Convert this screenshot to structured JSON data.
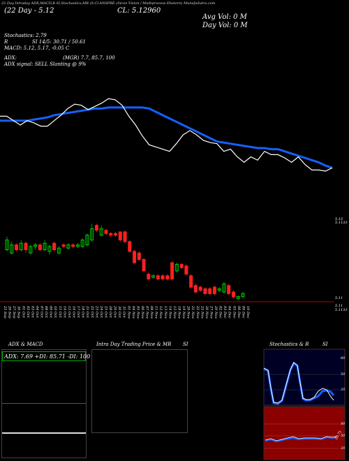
{
  "header": {
    "top_strip": "22 Day  Intraday ADX,MACD,B     SI,Stochastics,MR          (S.Cl.ANSPRE       (Incon Vision / Multiprocess Ebotorn) MunafaSutra.com",
    "line1_left": "(22 Day - 5.12",
    "line1_mid": "CL: 5.12960",
    "line2_right": "Avg Vol: 0   M",
    "line3_right": "Day Vol: 0   M"
  },
  "indicators": {
    "stoch": "Stochastics: 2.79",
    "r": "R",
    "si": "SI 14/5: 30.71 / 50.61",
    "macd": "MACD: 5.12, 5.17, -0.05 C",
    "adx": "ADX:",
    "adx_vals": "(MGR) 7.7,  85.7,  100",
    "adx_signal": "ADX  signal: SELL  Slanting @ 9%"
  },
  "price_labels": {
    "upper_top": "5.15",
    "upper_bottom": "5.1133",
    "lower_top": "5.11",
    "lower_mid": "5.11",
    "lower_bottom": "5.1133"
  },
  "dates": [
    "25 Sep",
    "26 Sep",
    "27 Sep",
    "30 Sep",
    "01 Oct",
    "02 Oct",
    "03 Oct",
    "04 Oct",
    "07 Oct",
    "08 Oct",
    "09 Oct",
    "10 Oct",
    "11 Oct",
    "14 Oct",
    "15 Oct",
    "16 Oct",
    "17 Oct",
    "18 Oct",
    "21 Oct",
    "22 Oct",
    "23 Oct",
    "24 Oct",
    "25 Oct",
    "28 Oct",
    "29 Oct",
    "30 Oct",
    "31 Oct",
    "01 Nov",
    "04 Nov",
    "05 Nov",
    "06 Nov",
    "07 Nov",
    "08 Nov",
    "11 Nov",
    "12 Nov",
    "13 Nov",
    "14 Nov",
    "15 Nov",
    "18 Nov",
    "19 Nov",
    "20 Nov",
    "21 Nov",
    "22 Nov",
    "25 Nov",
    "26 Nov",
    "27 Nov",
    "29 Nov",
    "02 Dec",
    "03 Dec",
    "04 Dec",
    "05 Dec",
    "06 Dec",
    "09 Dec",
    "10 Dec"
  ],
  "bottom": {
    "adx_title": "ADX  & MACD",
    "adx_box": "ADX: 7.69  +DI: 85.71 -DI: 100",
    "intra_title": "Intra  Day Trading Price  & MR",
    "intra_si": "SI",
    "stoch_title": "Stochastics & R",
    "stoch_si": "SI",
    "stoch_ticks": [
      "80",
      "50",
      "20"
    ],
    "rsi_ticks": [
      "80",
      "50",
      "20"
    ],
    "rsi_label": "50.71"
  },
  "colors": {
    "background": "#000000",
    "ma_line": "#1560ff",
    "price_line": "#ffffff",
    "up_candle": "#00cc00",
    "down_candle": "#ff2020",
    "adx_box": "#00aa00",
    "rsi_panel": "#8b0000"
  },
  "chart_data": [
    {
      "type": "line",
      "series": [
        {
          "values": [
            5.15,
            5.15,
            5.146,
            5.142,
            5.146,
            5.144,
            5.141,
            5.141,
            5.146,
            5.151,
            5.157,
            5.161,
            5.16,
            5.156,
            5.159,
            5.162,
            5.166,
            5.165,
            5.16,
            5.15,
            5.142,
            5.132,
            5.124,
            5.122,
            5.12,
            5.118,
            5.125,
            5.133,
            5.137,
            5.133,
            5.128,
            5.126,
            5.125,
            5.118,
            5.12,
            5.113,
            5.108,
            5.113,
            5.11,
            5.118,
            5.115,
            5.115,
            5.112,
            5.108,
            5.113,
            5.106,
            5.101,
            5.101,
            5.1,
            5.103
          ]
        },
        {
          "values": [
            5.146,
            5.146,
            5.146,
            5.146,
            5.146,
            5.147,
            5.148,
            5.149,
            5.151,
            5.152,
            5.153,
            5.154,
            5.155,
            5.156,
            5.157,
            5.157,
            5.158,
            5.158,
            5.158,
            5.158,
            5.158,
            5.158,
            5.157,
            5.154,
            5.151,
            5.148,
            5.145,
            5.142,
            5.139,
            5.136,
            5.133,
            5.13,
            5.127,
            5.126,
            5.125,
            5.124,
            5.123,
            5.122,
            5.121,
            5.121,
            5.12,
            5.12,
            5.118,
            5.116,
            5.114,
            5.112,
            5.11,
            5.108,
            5.105,
            5.103
          ]
        }
      ]
    },
    {
      "type": "candlestick",
      "candles": [
        {
          "o": 5.133,
          "c": 5.136,
          "h": 5.137,
          "l": 5.1325
        },
        {
          "o": 5.132,
          "c": 5.1345,
          "h": 5.1355,
          "l": 5.1315
        },
        {
          "o": 5.1345,
          "c": 5.133,
          "h": 5.135,
          "l": 5.1325
        },
        {
          "o": 5.133,
          "c": 5.135,
          "h": 5.136,
          "l": 5.1325
        },
        {
          "o": 5.135,
          "c": 5.133,
          "h": 5.1355,
          "l": 5.132
        },
        {
          "o": 5.132,
          "c": 5.134,
          "h": 5.1345,
          "l": 5.1315
        },
        {
          "o": 5.134,
          "c": 5.1345,
          "h": 5.135,
          "l": 5.133
        },
        {
          "o": 5.1345,
          "c": 5.133,
          "h": 5.135,
          "l": 5.1325
        },
        {
          "o": 5.133,
          "c": 5.135,
          "h": 5.136,
          "l": 5.1325
        },
        {
          "o": 5.1325,
          "c": 5.134,
          "h": 5.1345,
          "l": 5.1315
        },
        {
          "o": 5.135,
          "c": 5.133,
          "h": 5.1355,
          "l": 5.1325
        },
        {
          "o": 5.132,
          "c": 5.1335,
          "h": 5.134,
          "l": 5.1315
        },
        {
          "o": 5.1345,
          "c": 5.134,
          "h": 5.135,
          "l": 5.1335
        },
        {
          "o": 5.1335,
          "c": 5.1345,
          "h": 5.135,
          "l": 5.133
        },
        {
          "o": 5.1345,
          "c": 5.134,
          "h": 5.135,
          "l": 5.1335
        },
        {
          "o": 5.134,
          "c": 5.1345,
          "h": 5.135,
          "l": 5.1335
        },
        {
          "o": 5.134,
          "c": 5.136,
          "h": 5.1365,
          "l": 5.1335
        },
        {
          "o": 5.1345,
          "c": 5.1375,
          "h": 5.138,
          "l": 5.134
        },
        {
          "o": 5.136,
          "c": 5.1395,
          "h": 5.141,
          "l": 5.1355
        },
        {
          "o": 5.1405,
          "c": 5.139,
          "h": 5.141,
          "l": 5.1385
        },
        {
          "o": 5.1375,
          "c": 5.1395,
          "h": 5.1405,
          "l": 5.137
        },
        {
          "o": 5.139,
          "c": 5.138,
          "h": 5.1395,
          "l": 5.1375
        },
        {
          "o": 5.138,
          "c": 5.1375,
          "h": 5.1385,
          "l": 5.137
        },
        {
          "o": 5.138,
          "c": 5.1375,
          "h": 5.1385,
          "l": 5.137
        },
        {
          "o": 5.1385,
          "c": 5.136,
          "h": 5.1385,
          "l": 5.1355
        },
        {
          "o": 5.1385,
          "c": 5.1355,
          "h": 5.139,
          "l": 5.135
        },
        {
          "o": 5.1355,
          "c": 5.1325,
          "h": 5.136,
          "l": 5.132
        },
        {
          "o": 5.1325,
          "c": 5.129,
          "h": 5.133,
          "l": 5.1285
        },
        {
          "o": 5.132,
          "c": 5.13,
          "h": 5.1325,
          "l": 5.1295
        },
        {
          "o": 5.13,
          "c": 5.1265,
          "h": 5.1305,
          "l": 5.126
        },
        {
          "o": 5.1255,
          "c": 5.124,
          "h": 5.126,
          "l": 5.1235
        },
        {
          "o": 5.1245,
          "c": 5.125,
          "h": 5.1255,
          "l": 5.124
        },
        {
          "o": 5.125,
          "c": 5.124,
          "h": 5.1255,
          "l": 5.1235
        },
        {
          "o": 5.125,
          "c": 5.124,
          "h": 5.1255,
          "l": 5.1235
        },
        {
          "o": 5.125,
          "c": 5.124,
          "h": 5.1255,
          "l": 5.1235
        },
        {
          "o": 5.129,
          "c": 5.124,
          "h": 5.1295,
          "l": 5.1235
        },
        {
          "o": 5.1265,
          "c": 5.1285,
          "h": 5.129,
          "l": 5.126
        },
        {
          "o": 5.1285,
          "c": 5.1275,
          "h": 5.129,
          "l": 5.127
        },
        {
          "o": 5.128,
          "c": 5.1255,
          "h": 5.1285,
          "l": 5.125
        },
        {
          "o": 5.125,
          "c": 5.1215,
          "h": 5.1255,
          "l": 5.121
        },
        {
          "o": 5.122,
          "c": 5.12,
          "h": 5.1225,
          "l": 5.1195
        },
        {
          "o": 5.1215,
          "c": 5.1205,
          "h": 5.122,
          "l": 5.12
        },
        {
          "o": 5.121,
          "c": 5.1195,
          "h": 5.1215,
          "l": 5.119
        },
        {
          "o": 5.121,
          "c": 5.1195,
          "h": 5.1215,
          "l": 5.119
        },
        {
          "o": 5.1215,
          "c": 5.1195,
          "h": 5.122,
          "l": 5.119
        },
        {
          "o": 5.1205,
          "c": 5.121,
          "h": 5.1215,
          "l": 5.12
        },
        {
          "o": 5.12,
          "c": 5.1225,
          "h": 5.123,
          "l": 5.1195
        },
        {
          "o": 5.122,
          "c": 5.1195,
          "h": 5.1225,
          "l": 5.119
        },
        {
          "o": 5.12,
          "c": 5.1185,
          "h": 5.1205,
          "l": 5.118
        },
        {
          "o": 5.118,
          "c": 5.1186,
          "h": 5.119,
          "l": 5.1175
        },
        {
          "o": 5.1186,
          "c": 5.1195,
          "h": 5.12,
          "l": 5.118
        }
      ]
    }
  ]
}
